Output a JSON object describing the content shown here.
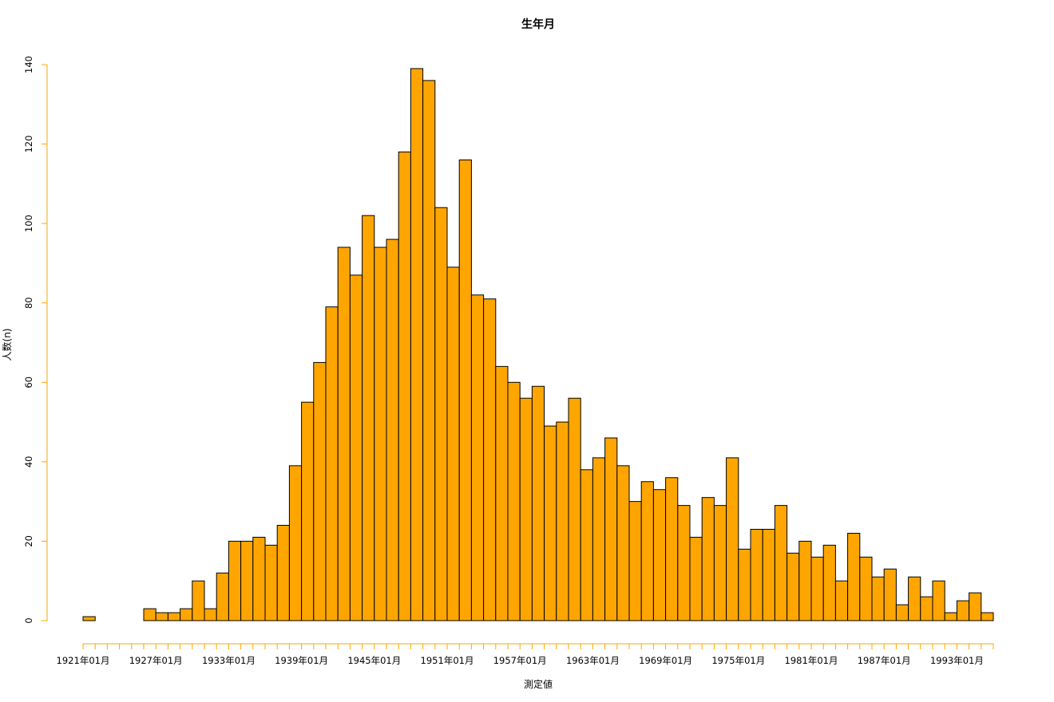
{
  "chart_data": {
    "type": "bar",
    "title": "生年月",
    "xlabel": "測定値",
    "ylabel": "人数(n)",
    "ylim": [
      0,
      140
    ],
    "y_ticks": [
      0,
      20,
      40,
      60,
      80,
      100,
      120,
      140
    ],
    "x_tick_labels": [
      "1921年01月",
      "1927年01月",
      "1933年01月",
      "1939年01月",
      "1945年01月",
      "1951年01月",
      "1957年01月",
      "1963年01月",
      "1969年01月",
      "1975年01月",
      "1981年01月",
      "1987年01月",
      "1993年01月"
    ],
    "bin_width_years": 1,
    "first_bin_start": "1921年01月",
    "values": [
      1,
      0,
      0,
      0,
      0,
      3,
      2,
      2,
      3,
      10,
      3,
      12,
      20,
      20,
      21,
      19,
      24,
      39,
      55,
      65,
      79,
      94,
      87,
      102,
      94,
      96,
      118,
      139,
      136,
      104,
      89,
      116,
      82,
      81,
      64,
      60,
      56,
      59,
      49,
      50,
      56,
      38,
      41,
      46,
      39,
      30,
      35,
      33,
      36,
      29,
      21,
      31,
      29,
      41,
      18,
      23,
      23,
      29,
      17,
      20,
      16,
      19,
      10,
      22,
      16,
      11,
      13,
      4,
      11,
      6,
      10,
      2,
      5,
      7,
      2
    ],
    "colors": {
      "bar_fill": "#FFA500",
      "bar_stroke": "#000000",
      "axis": "#FFA500"
    },
    "grid": false,
    "legend": "none"
  }
}
